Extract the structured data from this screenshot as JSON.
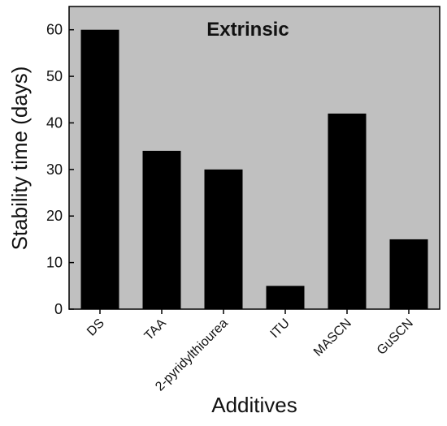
{
  "chart_data": {
    "type": "bar",
    "title": "Extrinsic",
    "xlabel": "Additives",
    "ylabel": "Stability time (days)",
    "categories": [
      "DS",
      "TAA",
      "2-pyridylthiourea",
      "ITU",
      "MASCN",
      "GuSCN"
    ],
    "values": [
      60,
      34,
      30,
      5,
      42,
      15
    ],
    "ylim": [
      0,
      65
    ],
    "yticks": [
      0,
      10,
      20,
      30,
      40,
      50,
      60
    ],
    "grid": false,
    "legend": "none",
    "colors": {
      "plot_background": "#c0c0c0",
      "bar": "#000000",
      "axis": "#000000"
    }
  }
}
